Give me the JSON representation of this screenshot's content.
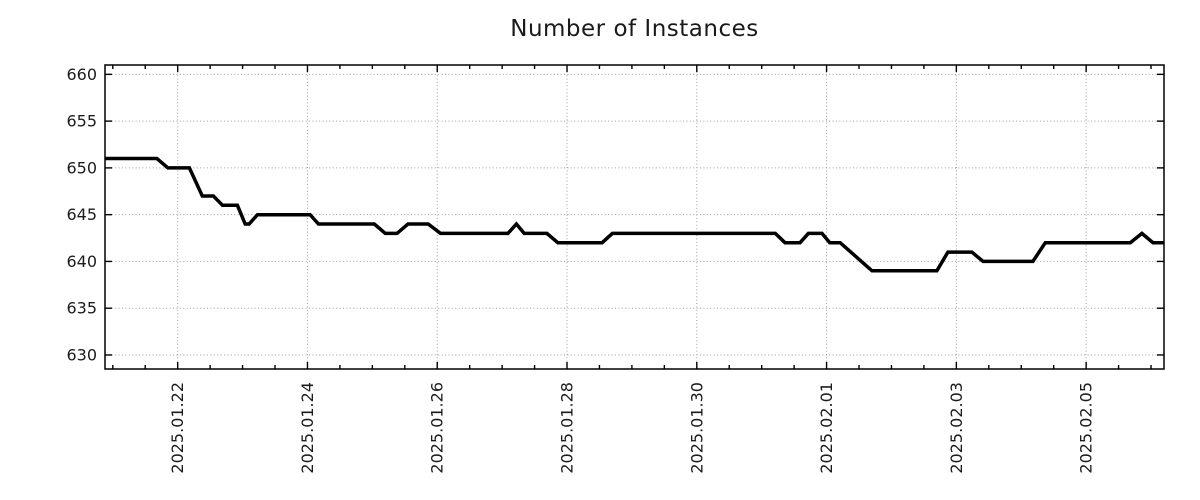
{
  "chart": {
    "title": "Number of Instances"
  },
  "chart_data": {
    "type": "line",
    "title": "Number of Instances",
    "xlabel": "",
    "ylabel": "",
    "legend": {
      "visible": false
    },
    "grid": {
      "on": true,
      "color": "#9e9e9e",
      "pattern": "dotted"
    },
    "axis_color": "#000000",
    "label_color": "#1c1c1c",
    "x_axis": {
      "kind": "date",
      "note": "day offsets measured from 2025.01.22 00:00",
      "tick_labels": [
        "2025.01.22",
        "2025.01.24",
        "2025.01.26",
        "2025.01.28",
        "2025.01.30",
        "2025.02.01",
        "2025.02.03",
        "2025.02.05"
      ],
      "tick_day_offsets": [
        0,
        2,
        4,
        6,
        8,
        10,
        12,
        14
      ],
      "range_days": [
        -1.12,
        15.2
      ],
      "minor_tick_step_days": 0.5
    },
    "y_axis": {
      "ticks": [
        660,
        655,
        650,
        645,
        640,
        635,
        630
      ],
      "range": [
        628.5,
        661.0
      ]
    },
    "series": [
      {
        "name": "Number of Instances",
        "color": "#000000",
        "line_width": 3.5,
        "points_day_value": [
          [
            -1.12,
            651
          ],
          [
            -0.32,
            651
          ],
          [
            -0.15,
            650
          ],
          [
            0.18,
            650
          ],
          [
            0.38,
            647
          ],
          [
            0.55,
            647
          ],
          [
            0.69,
            646
          ],
          [
            0.92,
            646
          ],
          [
            1.04,
            644
          ],
          [
            1.1,
            644
          ],
          [
            1.23,
            645
          ],
          [
            2.04,
            645
          ],
          [
            2.17,
            644
          ],
          [
            3.03,
            644
          ],
          [
            3.2,
            643
          ],
          [
            3.38,
            643
          ],
          [
            3.55,
            644
          ],
          [
            3.86,
            644
          ],
          [
            4.05,
            643
          ],
          [
            5.09,
            643
          ],
          [
            5.22,
            644
          ],
          [
            5.34,
            643
          ],
          [
            5.69,
            643
          ],
          [
            5.86,
            642
          ],
          [
            6.54,
            642
          ],
          [
            6.7,
            643
          ],
          [
            9.21,
            643
          ],
          [
            9.36,
            642
          ],
          [
            9.59,
            642
          ],
          [
            9.72,
            643
          ],
          [
            9.93,
            643
          ],
          [
            10.05,
            642
          ],
          [
            10.21,
            642
          ],
          [
            10.7,
            639
          ],
          [
            11.7,
            639
          ],
          [
            11.87,
            641
          ],
          [
            12.24,
            641
          ],
          [
            12.41,
            640
          ],
          [
            13.18,
            640
          ],
          [
            13.37,
            642
          ],
          [
            14.68,
            642
          ],
          [
            14.86,
            643
          ],
          [
            15.03,
            642
          ],
          [
            15.2,
            642
          ]
        ]
      }
    ]
  }
}
